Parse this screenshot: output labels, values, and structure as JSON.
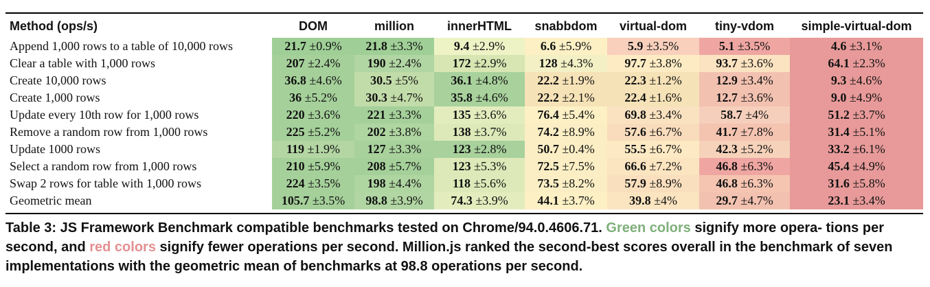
{
  "table": {
    "header_method": "Method (ops/s)",
    "columns": [
      "DOM",
      "million",
      "innerHTML",
      "snabbdom",
      "virtual-dom",
      "tiny-vdom",
      "simple-virtual-dom"
    ],
    "rows": [
      {
        "label": "Append 1,000 rows to a table of 10,000 rows",
        "cells": [
          [
            "21.7",
            "±0.9%"
          ],
          [
            "21.8",
            "±3.3%"
          ],
          [
            "9.4",
            "±2.9%"
          ],
          [
            "6.6",
            "±5.9%"
          ],
          [
            "5.9",
            "±3.5%"
          ],
          [
            "5.1",
            "±3.5%"
          ],
          [
            "4.6",
            "±3.1%"
          ]
        ]
      },
      {
        "label": "Clear a table with 1,000 rows",
        "cells": [
          [
            "207",
            "±2.4%"
          ],
          [
            "190",
            "±2.4%"
          ],
          [
            "172",
            "±2.9%"
          ],
          [
            "128",
            "±4.3%"
          ],
          [
            "97.7",
            "±3.8%"
          ],
          [
            "93.7",
            "±3.6%"
          ],
          [
            "64.1",
            "±2.3%"
          ]
        ]
      },
      {
        "label": "Create 10,000 rows",
        "cells": [
          [
            "36.8",
            "±4.6%"
          ],
          [
            "30.5",
            "±5%"
          ],
          [
            "36.1",
            "±4.8%"
          ],
          [
            "22.2",
            "±1.9%"
          ],
          [
            "22.3",
            "±1.2%"
          ],
          [
            "12.9",
            "±3.4%"
          ],
          [
            "9.3",
            "±4.6%"
          ]
        ]
      },
      {
        "label": "Create 1,000 rows",
        "cells": [
          [
            "36",
            "±5.2%"
          ],
          [
            "30.3",
            "±4.7%"
          ],
          [
            "35.8",
            "±4.6%"
          ],
          [
            "22.2",
            "±2.1%"
          ],
          [
            "22.4",
            "±1.6%"
          ],
          [
            "12.7",
            "±3.6%"
          ],
          [
            "9.0",
            "±4.9%"
          ]
        ]
      },
      {
        "label": "Update every 10th row for 1,000 rows",
        "cells": [
          [
            "220",
            "±3.6%"
          ],
          [
            "221",
            "±3.3%"
          ],
          [
            "135",
            "±3.6%"
          ],
          [
            "76.4",
            "±5.4%"
          ],
          [
            "69.8",
            "±3.4%"
          ],
          [
            "58.7",
            "±4%"
          ],
          [
            "51.2",
            "±3.7%"
          ]
        ]
      },
      {
        "label": "Remove a random row from 1,000 rows",
        "cells": [
          [
            "225",
            "±5.2%"
          ],
          [
            "202",
            "±3.8%"
          ],
          [
            "138",
            "±3.7%"
          ],
          [
            "74.2",
            "±8.9%"
          ],
          [
            "57.6",
            "±6.7%"
          ],
          [
            "41.7",
            "±7.8%"
          ],
          [
            "31.4",
            "±5.1%"
          ]
        ]
      },
      {
        "label": "Update 1000 rows",
        "cells": [
          [
            "119",
            "±1.9%"
          ],
          [
            "127",
            "±3.3%"
          ],
          [
            "123",
            "±2.8%"
          ],
          [
            "50.7",
            "±0.4%"
          ],
          [
            "55.5",
            "±6.7%"
          ],
          [
            "42.3",
            "±5.2%"
          ],
          [
            "33.2",
            "±6.1%"
          ]
        ]
      },
      {
        "label": "Select a random row from 1,000 rows",
        "cells": [
          [
            "210",
            "±5.9%"
          ],
          [
            "208",
            "±5.7%"
          ],
          [
            "123",
            "±5.3%"
          ],
          [
            "72.5",
            "±7.5%"
          ],
          [
            "66.6",
            "±7.2%"
          ],
          [
            "46.8",
            "±6.3%"
          ],
          [
            "45.4",
            "±4.9%"
          ]
        ]
      },
      {
        "label": "Swap 2 rows for table with 1,000 rows",
        "cells": [
          [
            "224",
            "±3.5%"
          ],
          [
            "198",
            "±4.4%"
          ],
          [
            "118",
            "±5.6%"
          ],
          [
            "73.5",
            "±8.2%"
          ],
          [
            "57.9",
            "±8.9%"
          ],
          [
            "46.8",
            "±6.3%"
          ],
          [
            "31.6",
            "±5.8%"
          ]
        ]
      },
      {
        "label": "Geometric mean",
        "cells": [
          [
            "105.7",
            "±3.5%"
          ],
          [
            "98.8",
            "±3.9%"
          ],
          [
            "74.3",
            "±3.9%"
          ],
          [
            "44.1",
            "±3.7%"
          ],
          [
            "39.8",
            "±4%"
          ],
          [
            "29.7",
            "±4.7%"
          ],
          [
            "23.1",
            "±3.4%"
          ]
        ]
      }
    ],
    "row_colors": [
      [
        "#9fcf96",
        "#9fcf96",
        "#eef3c6",
        "#fdf0c5",
        "#f8d0bc",
        "#efa6a2",
        "#e79a99"
      ],
      [
        "#a5d09a",
        "#b1d6a3",
        "#d7e6b2",
        "#f2f0c4",
        "#fdebc3",
        "#fbe2c0",
        "#e79a99"
      ],
      [
        "#a5d09a",
        "#c2dca9",
        "#a8d19c",
        "#f6e2b7",
        "#f6e2b7",
        "#f2c1b0",
        "#e79a99"
      ],
      [
        "#a5d09a",
        "#c2dca9",
        "#a8d19c",
        "#f6e2b7",
        "#f6e2b7",
        "#f2c1b0",
        "#e79a99"
      ],
      [
        "#a5d09a",
        "#a5d09a",
        "#e3ecbd",
        "#fdf0c5",
        "#fae2c0",
        "#f6cfbc",
        "#e79a99"
      ],
      [
        "#a5d09a",
        "#afd5a1",
        "#dde9b8",
        "#fbeec4",
        "#f8dcbc",
        "#f4c4b1",
        "#e79a99"
      ],
      [
        "#b3d6a3",
        "#a8d19c",
        "#a8d19c",
        "#fbeec4",
        "#fde9c3",
        "#f6d2ba",
        "#e79a99"
      ],
      [
        "#a5d09a",
        "#a5d09a",
        "#dde9b8",
        "#fbeec4",
        "#fbe4c0",
        "#efa6a2",
        "#e79a99"
      ],
      [
        "#a5d09a",
        "#afd5a1",
        "#dde9b8",
        "#fbeec4",
        "#f9dfbe",
        "#f5c5b1",
        "#e79a99"
      ],
      [
        "#a5d09a",
        "#b1d6a3",
        "#e3ecbd",
        "#fdf0c5",
        "#fbe4c0",
        "#f2c1b0",
        "#e79a99"
      ]
    ]
  },
  "caption": {
    "p1": "Table 3: JS Framework Benchmark compatible benchmarks tested on Chrome/94.0.4606.71. ",
    "green": "Green colors",
    "p2": " signify more opera- tions per second, and ",
    "red": "red colors",
    "p3": " signify fewer operations per second. Million.js ranked the second-best scores overall in the benchmark of seven implementations with the geometric mean of benchmarks at 98.8 operations per second."
  }
}
